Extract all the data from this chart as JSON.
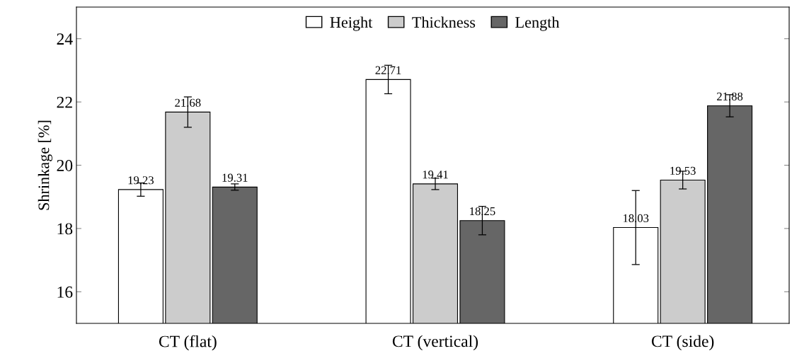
{
  "chart_data": {
    "type": "bar",
    "ylabel": "Shrinkage [%]",
    "categories": [
      "CT (flat)",
      "CT (vertical)",
      "CT (side)"
    ],
    "series": [
      {
        "name": "Height",
        "color": "#ffffff",
        "values": [
          19.23,
          22.71,
          18.03
        ],
        "errors": [
          0.21,
          0.45,
          1.17
        ]
      },
      {
        "name": "Thickness",
        "color": "#cccccc",
        "values": [
          21.68,
          19.41,
          19.53
        ],
        "errors": [
          0.48,
          0.18,
          0.28
        ]
      },
      {
        "name": "Length",
        "color": "#666666",
        "values": [
          19.31,
          18.25,
          21.88
        ],
        "errors": [
          0.1,
          0.45,
          0.35
        ]
      }
    ],
    "ylim": [
      15,
      25
    ],
    "yticks": [
      16,
      18,
      20,
      22,
      24
    ],
    "data_labels": true,
    "legend": "top",
    "grid": false
  }
}
